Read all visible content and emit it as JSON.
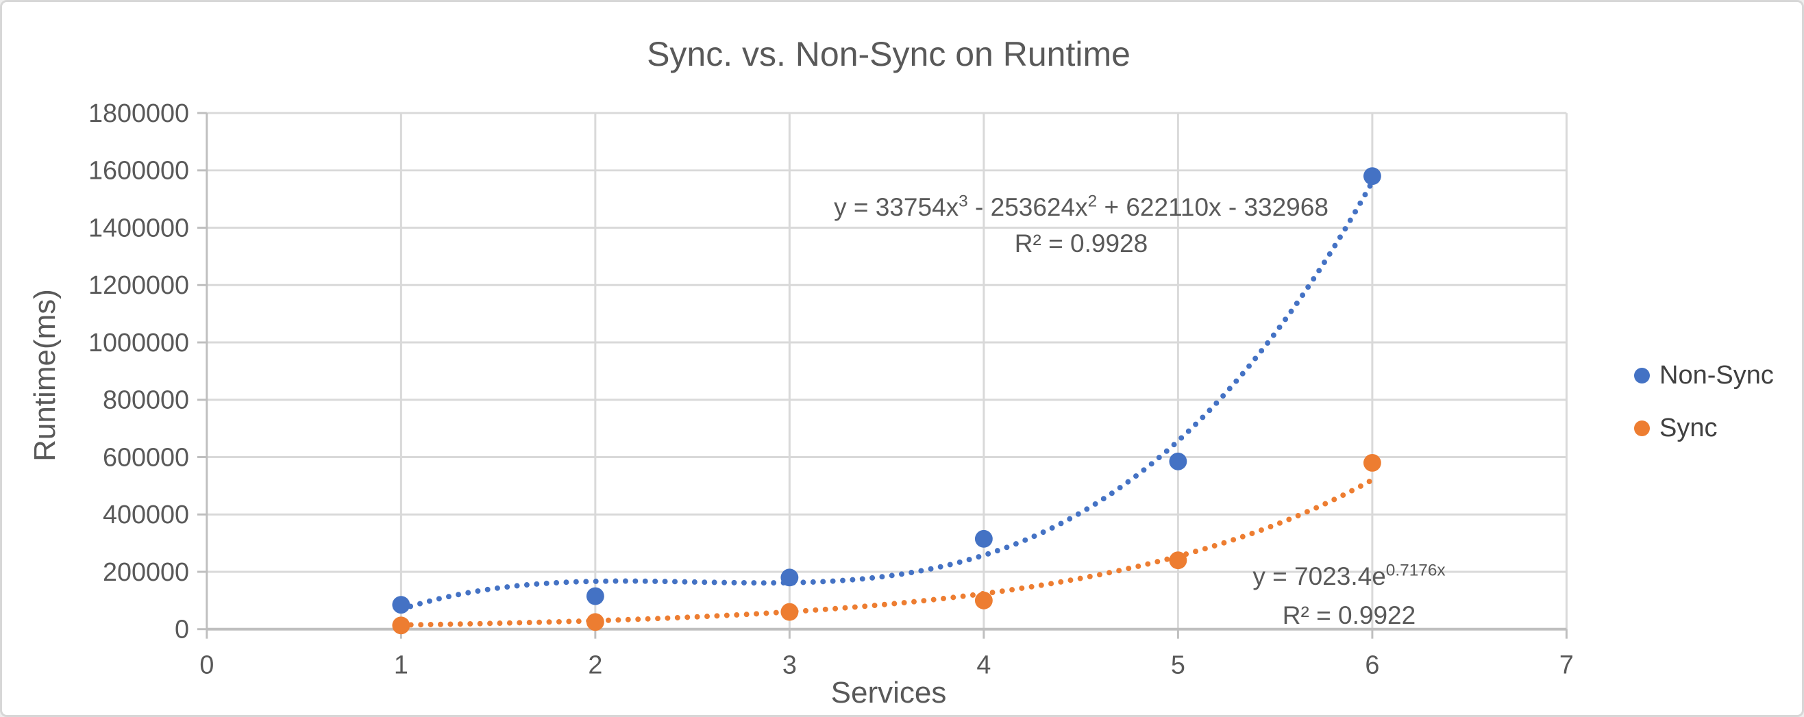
{
  "title": "Sync. vs. Non-Sync on Runtime",
  "x_axis": {
    "title": "Services",
    "ticks": [
      0,
      1,
      2,
      3,
      4,
      5,
      6,
      7
    ]
  },
  "y_axis": {
    "title": "Runtime(ms)",
    "ticks": [
      0,
      200000,
      400000,
      600000,
      800000,
      1000000,
      1200000,
      1400000,
      1600000,
      1800000
    ]
  },
  "legend": [
    {
      "label": "Non-Sync",
      "color": "#4472C4"
    },
    {
      "label": "Sync",
      "color": "#ED7D31"
    }
  ],
  "colors": {
    "gridline": "#D9D9D9",
    "axis_line": "#BFBFBF",
    "text": "#595959"
  },
  "chart_data": {
    "type": "scatter",
    "x": [
      1,
      2,
      3,
      4,
      5,
      6
    ],
    "series": [
      {
        "name": "Non-Sync",
        "color": "#4472C4",
        "values": [
          85000,
          115000,
          180000,
          315000,
          585000,
          1580000
        ],
        "trendline": {
          "kind": "polynomial",
          "coefficients": [
            33754,
            -253624,
            622110,
            -332968
          ],
          "domain": [
            1,
            6
          ],
          "equation": {
            "base": "y = 33754x",
            "sup1": "3",
            "mid1": " - 253624x",
            "sup2": "2",
            "tail": " + 622110x - 332968"
          },
          "r2": "R² = 0.9928"
        }
      },
      {
        "name": "Sync",
        "color": "#ED7D31",
        "values": [
          13000,
          25000,
          60000,
          100000,
          240000,
          580000
        ],
        "trendline": {
          "kind": "exponential",
          "a": 7023.4,
          "b": 0.7176,
          "domain": [
            1,
            6
          ],
          "equation": {
            "base": "y = 7023.4e",
            "exp": "0.7176x"
          },
          "r2": "R² = 0.9922"
        }
      }
    ],
    "title": "Sync. vs. Non-Sync on Runtime",
    "xlabel": "Services",
    "ylabel": "Runtime(ms)",
    "xlim": [
      0,
      7
    ],
    "ylim": [
      0,
      1800000
    ],
    "grid": true,
    "legend_position": "right"
  }
}
